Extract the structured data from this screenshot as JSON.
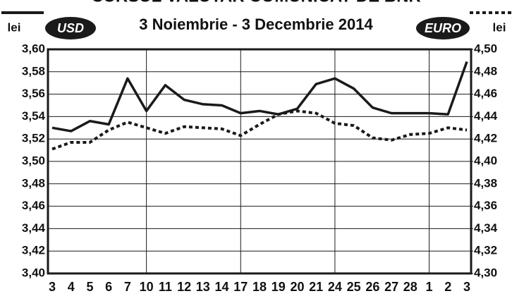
{
  "chart_data": {
    "type": "line",
    "title": "CURSUL VALUTAR COMUNICAT DE BNR",
    "subtitle": "3 Noiembrie - 3 Decembrie 2014",
    "ylabel": "lei",
    "y2label": "lei",
    "categories": [
      "3",
      "4",
      "5",
      "6",
      "7",
      "10",
      "11",
      "12",
      "13",
      "14",
      "17",
      "18",
      "19",
      "20",
      "21",
      "24",
      "25",
      "26",
      "27",
      "28",
      "1",
      "2",
      "3"
    ],
    "series": [
      {
        "name": "USD",
        "color": "#1a1a1a",
        "style": "solid",
        "values": [
          3.53,
          3.527,
          3.536,
          3.533,
          3.574,
          3.545,
          3.568,
          3.555,
          3.551,
          3.55,
          3.543,
          3.545,
          3.542,
          3.547,
          3.569,
          3.574,
          3.565,
          3.548,
          3.543,
          3.543,
          3.543,
          3.542,
          3.589
        ]
      },
      {
        "name": "EURO",
        "color": "#1a1a1a",
        "style": "dotted",
        "axis": "y2",
        "values": [
          4.411,
          4.417,
          4.417,
          4.428,
          4.435,
          4.43,
          4.425,
          4.431,
          4.43,
          4.429,
          4.423,
          4.433,
          4.442,
          4.445,
          4.443,
          4.434,
          4.432,
          4.421,
          4.419,
          4.424,
          4.425,
          4.43,
          4.428
        ]
      }
    ],
    "ylim": [
      3.4,
      3.6
    ],
    "yticks": [
      {
        "value": 3.4,
        "label": "3,40"
      },
      {
        "value": 3.42,
        "label": "3,42"
      },
      {
        "value": 3.44,
        "label": "3,44"
      },
      {
        "value": 3.46,
        "label": "3,46"
      },
      {
        "value": 3.48,
        "label": "3,48"
      },
      {
        "value": 3.5,
        "label": "3,50"
      },
      {
        "value": 3.52,
        "label": "3,52"
      },
      {
        "value": 3.54,
        "label": "3,54"
      },
      {
        "value": 3.56,
        "label": "3,56"
      },
      {
        "value": 3.58,
        "label": "3,58"
      },
      {
        "value": 3.6,
        "label": "3,60"
      }
    ],
    "y2lim": [
      4.3,
      4.5
    ],
    "y2ticks": [
      {
        "value": 4.3,
        "label": "4,30"
      },
      {
        "value": 4.32,
        "label": "4,32"
      },
      {
        "value": 4.34,
        "label": "4,34"
      },
      {
        "value": 4.36,
        "label": "4,36"
      },
      {
        "value": 4.38,
        "label": "4,38"
      },
      {
        "value": 4.4,
        "label": "4,40"
      },
      {
        "value": 4.42,
        "label": "4,42"
      },
      {
        "value": 4.44,
        "label": "4,44"
      },
      {
        "value": 4.46,
        "label": "4,46"
      },
      {
        "value": 4.48,
        "label": "4,48"
      },
      {
        "value": 4.5,
        "label": "4,50"
      }
    ],
    "grid": true
  }
}
